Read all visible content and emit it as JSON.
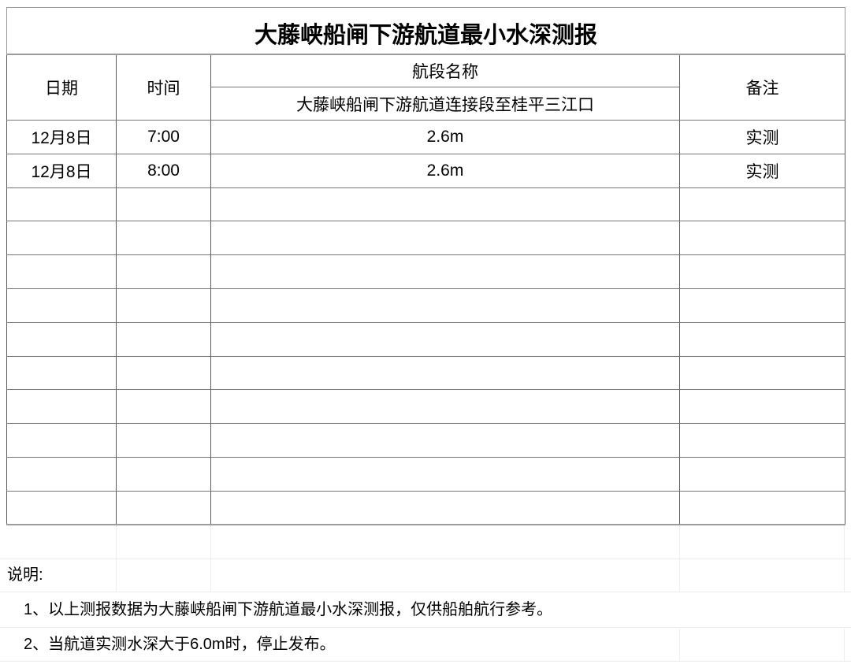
{
  "report": {
    "title": "大藤峡船闸下游航道最小水深测报",
    "table": {
      "columns": {
        "date": "日期",
        "time": "时间",
        "segment_group": "航段名称",
        "segment_name": "大藤峡船闸下游航道连接段至桂平三江口",
        "remark": "备注"
      },
      "rows": [
        {
          "date": "12月8日",
          "time": "7:00",
          "depth": "2.6m",
          "remark": "实测"
        },
        {
          "date": "12月8日",
          "time": "8:00",
          "depth": "2.6m",
          "remark": "实测"
        },
        {},
        {},
        {},
        {},
        {},
        {},
        {},
        {},
        {},
        {}
      ]
    },
    "notes": {
      "label": "说明:",
      "items": [
        "1、以上测报数据为大藤峡船闸下游航道最小水深测报，仅供船舶航行参考。",
        "2、当航道实测水深大于6.0m时，停止发布。"
      ]
    }
  },
  "colors": {
    "text": "#000000",
    "border_inner": "#5c5c5c",
    "border_heavy": "#9c9c9c",
    "grid_faint": "#ececec",
    "background": "#ffffff"
  }
}
